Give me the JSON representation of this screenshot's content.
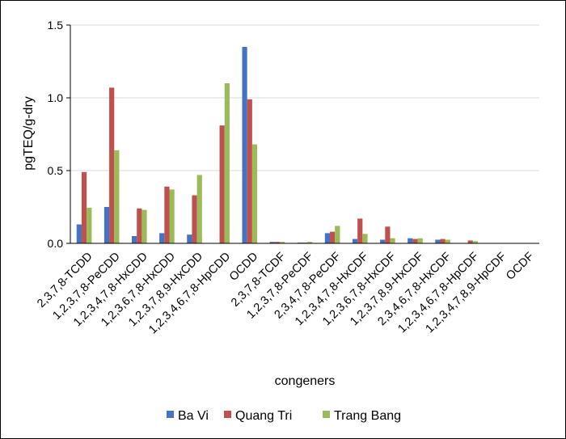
{
  "chart_data": {
    "type": "bar",
    "title": "",
    "xlabel": "congeners",
    "ylabel": "pgTEQ/g-dry",
    "ylim": [
      0,
      1.5
    ],
    "yticks": [
      "0.0",
      "0.5",
      "1.0",
      "1.5"
    ],
    "grid": true,
    "legend_position": "bottom",
    "categories": [
      "2,3,7,8-TCDD",
      "1,2,3,7,8-PeCDD",
      "1,2,3,4,7,8-HxCDD",
      "1,2,3,6,7,8-HxCDD",
      "1,2,3,7,8,9-HxCDD",
      "1,2,3,4,6,7,8-HpCDD",
      "OCDD",
      "2,3,7,8-TCDF",
      "1,2,3,7,8-PeCDF",
      "2,3,4,7,8-PeCDF",
      "1,2,3,4,7,8-HxCDF",
      "1,2,3,6,7,8-HxCDF",
      "1,2,3,7,8,9-HxCDF",
      "2,3,4,6,7,8-HxCDF",
      "1,2,3,4,6,7,8-HpCDF",
      "1,2,3,4,7,8,9-HpCDF",
      "OCDF"
    ],
    "series": [
      {
        "name": "Ba Vi",
        "color": "#4472C4",
        "values": [
          0.13,
          0.25,
          0.05,
          0.07,
          0.06,
          0.0,
          1.35,
          0.01,
          0.005,
          0.07,
          0.03,
          0.025,
          0.035,
          0.025,
          0.0,
          0.0,
          0.0
        ]
      },
      {
        "name": "Quang Tri",
        "color": "#C0504D",
        "values": [
          0.49,
          1.07,
          0.24,
          0.39,
          0.33,
          0.81,
          0.99,
          0.01,
          0.005,
          0.08,
          0.17,
          0.115,
          0.03,
          0.03,
          0.02,
          0.0,
          0.0
        ]
      },
      {
        "name": "Trang Bang",
        "color": "#9BBB59",
        "values": [
          0.245,
          0.64,
          0.23,
          0.37,
          0.47,
          1.1,
          0.68,
          0.01,
          0.01,
          0.12,
          0.065,
          0.035,
          0.035,
          0.025,
          0.015,
          0.0,
          0.0
        ]
      }
    ]
  }
}
